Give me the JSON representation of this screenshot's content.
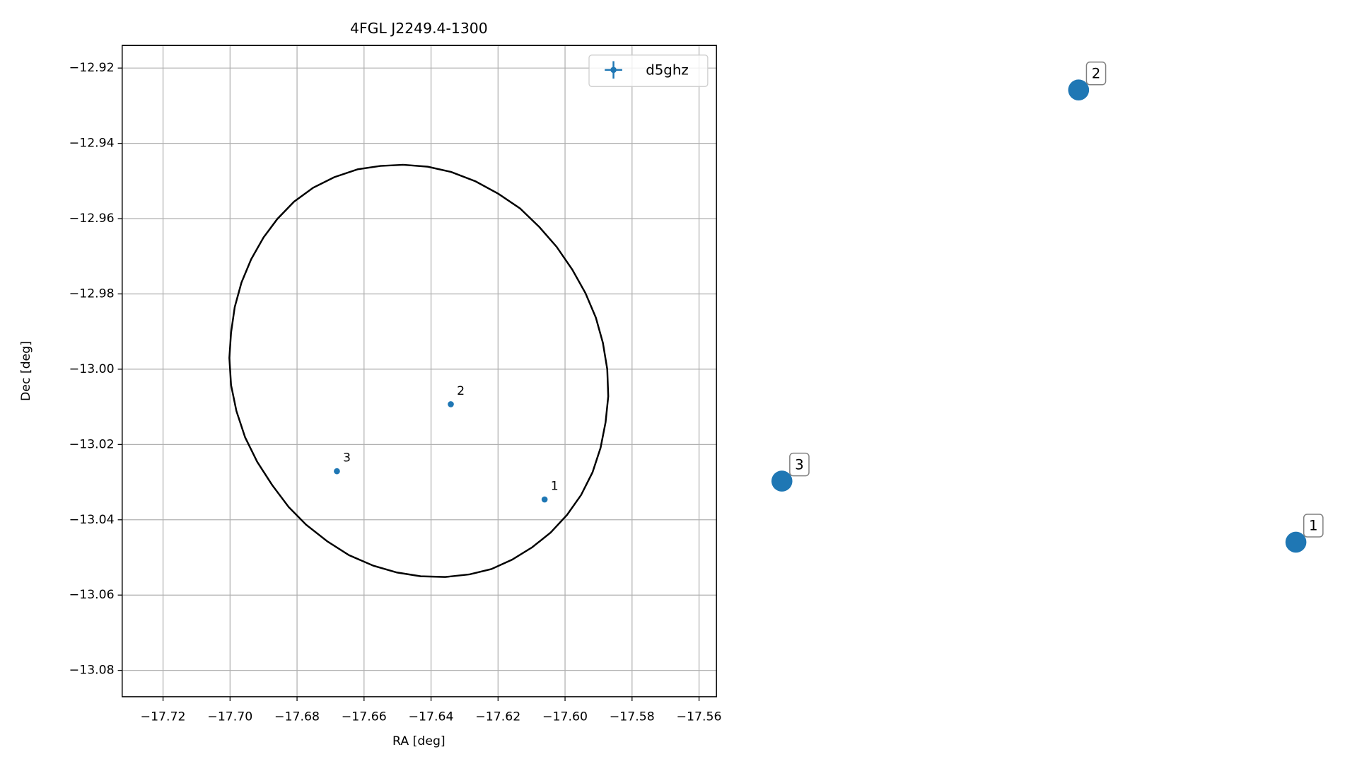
{
  "chart_data": [
    {
      "type": "scatter",
      "title": "4FGL J2249.4-1300",
      "x_label": "RA [deg]",
      "y_label": "Dec [deg]",
      "xlim": [
        -17.7322,
        -17.5548
      ],
      "ylim": [
        -13.087,
        -12.914
      ],
      "xticks": [
        {
          "value": -17.72,
          "label": "−17.72"
        },
        {
          "value": -17.7,
          "label": "−17.70"
        },
        {
          "value": -17.68,
          "label": "−17.68"
        },
        {
          "value": -17.66,
          "label": "−17.66"
        },
        {
          "value": -17.64,
          "label": "−17.64"
        },
        {
          "value": -17.62,
          "label": "−17.62"
        },
        {
          "value": -17.6,
          "label": "−17.60"
        },
        {
          "value": -17.58,
          "label": "−17.58"
        },
        {
          "value": -17.56,
          "label": "−17.56"
        }
      ],
      "yticks": [
        {
          "value": -12.92,
          "label": "−12.92"
        },
        {
          "value": -12.94,
          "label": "−12.94"
        },
        {
          "value": -12.96,
          "label": "−12.96"
        },
        {
          "value": -12.98,
          "label": "−12.98"
        },
        {
          "value": -13.0,
          "label": "−13.00"
        },
        {
          "value": -13.02,
          "label": "−13.02"
        },
        {
          "value": -13.04,
          "label": "−13.04"
        },
        {
          "value": -13.06,
          "label": "−13.06"
        },
        {
          "value": -13.08,
          "label": "−13.08"
        }
      ],
      "grid": true,
      "legend": "upper right",
      "series": [
        {
          "name": "d5ghz",
          "color": "#1f77b4",
          "mode": "points",
          "x": [
            -17.6061,
            -17.6341,
            -17.6681
          ],
          "y": [
            -13.0346,
            -13.0093,
            -13.0271
          ],
          "point_labels": [
            "1",
            "2",
            "3"
          ]
        },
        {
          "color": "#000000",
          "mode": "line",
          "x": [
            -17.6483,
            -17.641,
            -17.634,
            -17.6267,
            -17.6199,
            -17.6134,
            -17.6077,
            -17.6025,
            -17.5978,
            -17.5939,
            -17.5908,
            -17.5887,
            -17.5874,
            -17.5871,
            -17.5879,
            -17.5894,
            -17.5918,
            -17.5952,
            -17.5994,
            -17.6043,
            -17.6098,
            -17.6158,
            -17.622,
            -17.6285,
            -17.6358,
            -17.6431,
            -17.6502,
            -17.6572,
            -17.6645,
            -17.671,
            -17.6773,
            -17.6825,
            -17.6874,
            -17.6919,
            -17.6955,
            -17.6981,
            -17.6997,
            -17.7002,
            -17.6997,
            -17.6986,
            -17.6966,
            -17.6937,
            -17.69,
            -17.6859,
            -17.6809,
            -17.6752,
            -17.6689,
            -17.6619,
            -17.6551,
            -17.6483
          ],
          "y": [
            -12.9457,
            -12.9462,
            -12.9476,
            -12.9501,
            -12.9534,
            -12.9573,
            -12.9622,
            -12.9675,
            -12.9736,
            -12.9798,
            -12.9863,
            -12.993,
            -13.0,
            -13.0072,
            -13.0141,
            -13.0209,
            -13.0274,
            -13.0334,
            -13.0387,
            -13.0434,
            -13.0473,
            -13.0506,
            -13.0531,
            -13.0545,
            -13.0552,
            -13.055,
            -13.054,
            -13.0522,
            -13.0494,
            -13.0457,
            -13.0413,
            -13.0366,
            -13.0308,
            -13.0246,
            -13.0181,
            -13.0111,
            -13.0042,
            -12.997,
            -12.9903,
            -12.9835,
            -12.977,
            -12.9708,
            -12.965,
            -12.9601,
            -12.9555,
            -12.9518,
            -12.949,
            -12.9469,
            -12.946,
            -12.9457
          ]
        }
      ]
    },
    {
      "type": "markers",
      "color": "#1f77b4",
      "labels": [
        "1",
        "2",
        "3"
      ]
    }
  ]
}
